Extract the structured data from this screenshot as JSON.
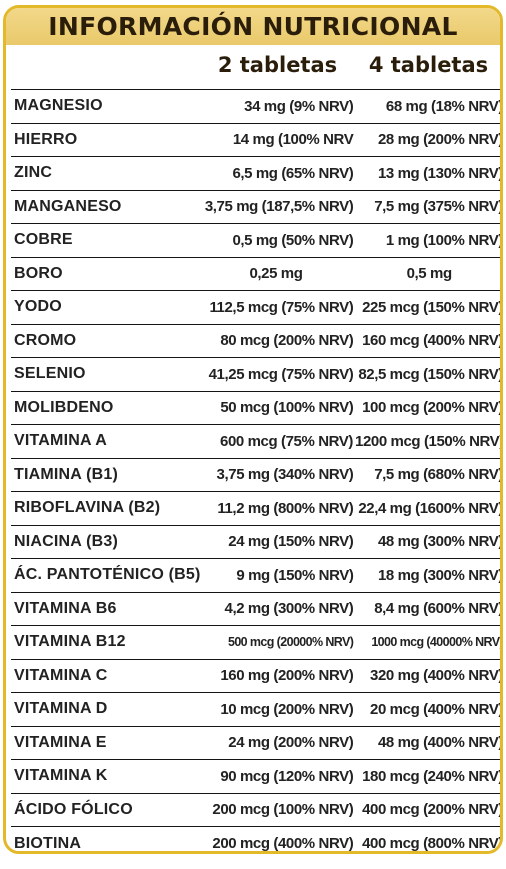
{
  "header": {
    "title": "INFORMACIÓN NUTRICIONAL",
    "col1": "2 tabletas",
    "col2": "4 tabletas"
  },
  "rows": [
    {
      "name": "MAGNESIO",
      "v1": "34 mg (9% NRV)",
      "v2": "68 mg (18% NRV)"
    },
    {
      "name": "HIERRO",
      "v1": "14 mg (100% NRV",
      "v2": "28 mg (200% NRV)"
    },
    {
      "name": "ZINC",
      "v1": "6,5 mg (65% NRV)",
      "v2": "13 mg (130% NRV)"
    },
    {
      "name": "MANGANESO",
      "v1": "3,75 mg (187,5% NRV)",
      "v2": "7,5 mg (375% NRV)"
    },
    {
      "name": "COBRE",
      "v1": "0,5 mg (50% NRV)",
      "v2": "1 mg (100% NRV)"
    },
    {
      "name": "BORO",
      "v1": "0,25 mg",
      "v2": "0,5 mg"
    },
    {
      "name": "YODO",
      "v1": "112,5 mcg (75% NRV)",
      "v2": "225 mcg (150% NRV)"
    },
    {
      "name": "CROMO",
      "v1": "80 mcg (200% NRV)",
      "v2": "160 mcg (400% NRV)"
    },
    {
      "name": "SELENIO",
      "v1": "41,25 mcg (75% NRV)",
      "v2": "82,5 mcg (150% NRV)"
    },
    {
      "name": "MOLIBDENO",
      "v1": "50 mcg (100% NRV)",
      "v2": "100 mcg (200% NRV)"
    },
    {
      "name": "VITAMINA A",
      "v1": "600 mcg (75% NRV)",
      "v2": "1200 mcg (150% NRV)"
    },
    {
      "name": "TIAMINA (B1)",
      "v1": "3,75 mg (340% NRV)",
      "v2": "7,5 mg (680% NRV)"
    },
    {
      "name": "RIBOFLAVINA (B2)",
      "v1": "11,2 mg (800% NRV)",
      "v2": "22,4 mg (1600% NRV)"
    },
    {
      "name": "NIACINA (B3)",
      "v1": "24 mg (150% NRV)",
      "v2": "48 mg (300% NRV)"
    },
    {
      "name": "ÁC. PANTOTÉNICO (B5)",
      "v1": "9 mg (150% NRV)",
      "v2": "18 mg (300% NRV)"
    },
    {
      "name": "VITAMINA B6",
      "v1": "4,2 mg (300% NRV)",
      "v2": "8,4 mg (600% NRV)"
    },
    {
      "name": "VITAMINA B12",
      "v1": "500 mcg (20000% NRV)",
      "v2": "1000 mcg (40000% NRV)"
    },
    {
      "name": "VITAMINA C",
      "v1": "160 mg (200% NRV)",
      "v2": "320 mg (400% NRV)"
    },
    {
      "name": "VITAMINA D",
      "v1": "10 mcg (200% NRV)",
      "v2": "20 mcg (400% NRV)"
    },
    {
      "name": "VITAMINA E",
      "v1": "24 mg (200% NRV)",
      "v2": "48 mg (400% NRV)"
    },
    {
      "name": "VITAMINA K",
      "v1": "90 mcg (120% NRV)",
      "v2": "180 mcg (240% NRV)"
    },
    {
      "name": "ÁCIDO FÓLICO",
      "v1": "200 mcg (100% NRV)",
      "v2": "400 mcg (200% NRV)"
    },
    {
      "name": "BIOTINA",
      "v1": "200 mcg (400% NRV)",
      "v2": "400 mcg (800% NRV)"
    }
  ],
  "colors": {
    "border": "#e3b92a",
    "header_bg": "#efd27c",
    "text": "#2a1d0a"
  }
}
